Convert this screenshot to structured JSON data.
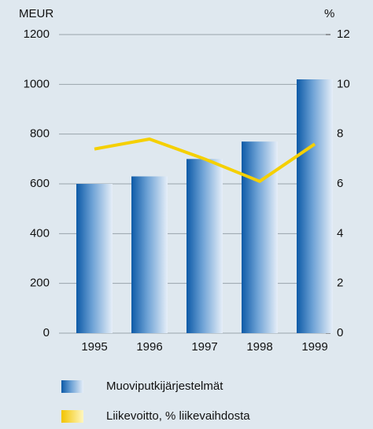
{
  "chart_data": {
    "type": "bar",
    "y_label": "MEUR",
    "y2_label": "%",
    "categories": [
      "1995",
      "1996",
      "1997",
      "1998",
      "1999"
    ],
    "series": [
      {
        "name": "Muoviputkijärjestelmät",
        "type": "bar",
        "color": "#1f6fb8",
        "values": [
          600,
          630,
          700,
          770,
          1020
        ]
      },
      {
        "name": "Liikevoitto, % liikevaihdosta",
        "type": "line",
        "axis": "y2",
        "color": "#f5d000",
        "values": [
          7.4,
          7.8,
          7.0,
          6.1,
          7.6
        ]
      }
    ],
    "ylim": [
      0,
      1200
    ],
    "yticks": [
      0,
      200,
      400,
      600,
      800,
      1000,
      1200
    ],
    "y2lim": [
      0,
      12
    ],
    "y2ticks": [
      0,
      2,
      4,
      6,
      8,
      10,
      12
    ],
    "grid": true
  }
}
